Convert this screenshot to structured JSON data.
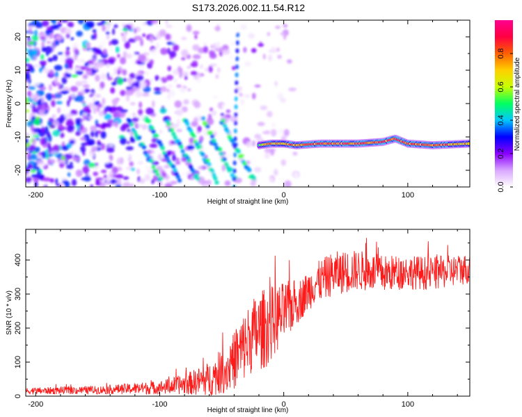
{
  "title": "S173.2026.002.11.54.R12",
  "chart_data": [
    {
      "type": "heatmap",
      "title": "",
      "xlabel": "Height of straight line (km)",
      "ylabel": "Frequency (Hz)",
      "xlim": [
        -208,
        150
      ],
      "ylim": [
        -25,
        25
      ],
      "xticks": [
        -200,
        -100,
        0,
        100
      ],
      "yticks": [
        20,
        10,
        0,
        -10,
        -20
      ],
      "colorbar": {
        "label": "Normalized spectral amplitude",
        "range": [
          0,
          1
        ],
        "ticks": [
          0.0,
          0.2,
          0.4,
          0.6,
          0.8
        ],
        "stops": [
          "#ffffff",
          "#d9a6ff",
          "#8a00ff",
          "#0000ff",
          "#00c8ff",
          "#00ff60",
          "#c8ff00",
          "#ffd000",
          "#ff6000",
          "#ff0040",
          "#ff0090"
        ]
      },
      "tone": {
        "band": [
          {
            "x": -20,
            "freq": -12.5,
            "amp": 0.55
          },
          {
            "x": -10,
            "freq": -12.0,
            "amp": 0.75
          },
          {
            "x": 0,
            "freq": -12.0,
            "amp": 0.8
          },
          {
            "x": 10,
            "freq": -12.5,
            "amp": 0.8
          },
          {
            "x": 30,
            "freq": -12.0,
            "amp": 0.85
          },
          {
            "x": 60,
            "freq": -12.0,
            "amp": 0.9
          },
          {
            "x": 80,
            "freq": -11.5,
            "amp": 0.85
          },
          {
            "x": 90,
            "freq": -10.5,
            "amp": 0.9
          },
          {
            "x": 100,
            "freq": -12.0,
            "amp": 0.8
          },
          {
            "x": 120,
            "freq": -12.5,
            "amp": 0.85
          },
          {
            "x": 150,
            "freq": -12.0,
            "amp": 0.7
          }
        ],
        "striations_start_x": [
          -125,
          -110,
          -95,
          -80,
          -65,
          -50
        ],
        "noise_region_x": [
          -208,
          -30
        ]
      }
    },
    {
      "type": "line",
      "title": "",
      "xlabel": "Height of straight line (km)",
      "ylabel": "SNR (10 * v/v)",
      "xlim": [
        -208,
        150
      ],
      "ylim": [
        0,
        490
      ],
      "xticks": [
        -200,
        -100,
        0,
        100
      ],
      "yticks": [
        0,
        100,
        200,
        300,
        400
      ],
      "color": "#ff1a1a",
      "envelope": {
        "x": [
          -208,
          -150,
          -100,
          -80,
          -60,
          -45,
          -35,
          -25,
          -15,
          -5,
          5,
          15,
          25,
          40,
          60,
          80,
          100,
          120,
          150
        ],
        "mean": [
          15,
          18,
          25,
          35,
          50,
          80,
          130,
          180,
          200,
          230,
          260,
          290,
          330,
          360,
          370,
          360,
          365,
          360,
          375
        ],
        "amplitude": [
          10,
          12,
          20,
          30,
          50,
          70,
          100,
          110,
          120,
          100,
          80,
          60,
          60,
          65,
          60,
          55,
          50,
          50,
          45
        ]
      }
    }
  ]
}
